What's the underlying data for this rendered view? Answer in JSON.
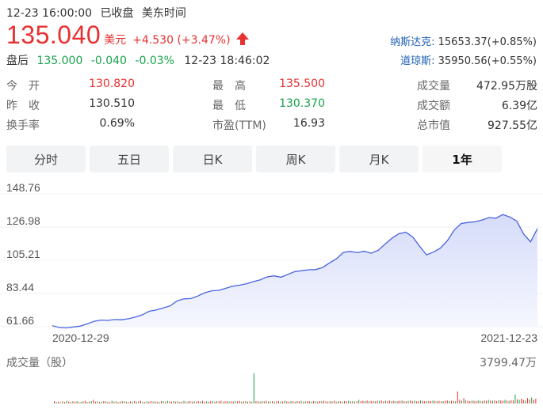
{
  "header": {
    "datetime": "12-23 16:00:00",
    "status": "已收盘",
    "timezone": "美东时间",
    "price": "135.040",
    "currency": "美元",
    "change": "+4.530 (+3.47%)",
    "after_label": "盘后",
    "after_price": "135.000",
    "after_change": "-0.040",
    "after_pct": "-0.03%",
    "after_time": "12-23 18:46:02"
  },
  "indices": [
    {
      "name": "纳斯达克:",
      "value": "15653.37(+0.85%)"
    },
    {
      "name": "道琼斯:",
      "value": "35950.56(+0.55%)"
    }
  ],
  "stats": [
    [
      {
        "label": "今　开",
        "value": "130.820",
        "color": "red"
      },
      {
        "label": "最　高",
        "value": "135.500",
        "color": "red"
      },
      {
        "label": "成交量",
        "value": "472.95万股",
        "color": ""
      }
    ],
    [
      {
        "label": "昨　收",
        "value": "130.510",
        "color": ""
      },
      {
        "label": "最　低",
        "value": "130.370",
        "color": "green"
      },
      {
        "label": "成交额",
        "value": "6.39亿",
        "color": ""
      }
    ],
    [
      {
        "label": "换手率",
        "value": "0.69%",
        "color": ""
      },
      {
        "label": "市盈(TTM)",
        "value": "16.93",
        "color": ""
      },
      {
        "label": "总市值",
        "value": "927.55亿",
        "color": ""
      }
    ]
  ],
  "tabs": [
    {
      "label": "分时",
      "active": false
    },
    {
      "label": "五日",
      "active": false
    },
    {
      "label": "日K",
      "active": false
    },
    {
      "label": "周K",
      "active": false
    },
    {
      "label": "月K",
      "active": false
    },
    {
      "label": "1年",
      "active": true
    }
  ],
  "colors": {
    "up": "#e93030",
    "down": "#17a34a",
    "line": "#4a63e0",
    "fill": "#dfe4fb",
    "link": "#1f5fb5"
  },
  "chart_data": {
    "type": "area",
    "y_ticks": [
      "148.76",
      "126.98",
      "105.21",
      "83.44",
      "61.66"
    ],
    "ylim": [
      61.66,
      148.76
    ],
    "x_labels": [
      "2020-12-29",
      "2021-12-23"
    ],
    "values": [
      62.3,
      61.2,
      60.9,
      61.5,
      62.0,
      63.5,
      65.2,
      66.0,
      65.8,
      66.4,
      66.2,
      66.9,
      68.0,
      69.5,
      71.8,
      72.6,
      74.0,
      75.3,
      78.6,
      79.9,
      80.1,
      81.8,
      83.9,
      85.2,
      85.5,
      86.8,
      88.2,
      88.9,
      89.8,
      91.2,
      92.4,
      94.3,
      95.0,
      94.1,
      96.0,
      97.8,
      98.4,
      99.0,
      99.1,
      100.5,
      103.5,
      106.2,
      110.4,
      111.0,
      110.2,
      111.1,
      109.8,
      111.7,
      115.8,
      119.6,
      122.6,
      123.6,
      120.5,
      114.4,
      108.8,
      110.6,
      113.2,
      118.0,
      125.0,
      129.3,
      130.0,
      130.4,
      131.6,
      133.2,
      132.8,
      135.2,
      133.6,
      131.0,
      122.5,
      117.3,
      126.0
    ],
    "volume_title": "成交量（股）",
    "volume_max": "3799.47万",
    "volume": [
      {
        "v": 0.08,
        "up": true
      },
      {
        "v": 0.05,
        "up": false
      },
      {
        "v": 0.06,
        "up": true
      },
      {
        "v": 0.04,
        "up": false
      },
      {
        "v": 0.07,
        "up": true
      },
      {
        "v": 0.05,
        "up": true
      },
      {
        "v": 0.09,
        "up": false
      },
      {
        "v": 0.06,
        "up": true
      },
      {
        "v": 0.05,
        "up": false
      },
      {
        "v": 0.07,
        "up": true
      },
      {
        "v": 0.06,
        "up": true
      },
      {
        "v": 0.08,
        "up": false
      },
      {
        "v": 0.05,
        "up": true
      },
      {
        "v": 0.06,
        "up": false
      },
      {
        "v": 0.07,
        "up": true
      },
      {
        "v": 0.09,
        "up": true
      },
      {
        "v": 0.05,
        "up": false
      },
      {
        "v": 0.06,
        "up": true
      },
      {
        "v": 0.08,
        "up": false
      },
      {
        "v": 0.12,
        "up": true
      },
      {
        "v": 0.06,
        "up": true
      },
      {
        "v": 0.07,
        "up": false
      },
      {
        "v": 0.05,
        "up": true
      },
      {
        "v": 0.06,
        "up": false
      },
      {
        "v": 0.08,
        "up": true
      },
      {
        "v": 0.07,
        "up": false
      },
      {
        "v": 0.06,
        "up": true
      },
      {
        "v": 0.05,
        "up": true
      },
      {
        "v": 0.09,
        "up": false
      },
      {
        "v": 0.06,
        "up": true
      },
      {
        "v": 0.07,
        "up": false
      },
      {
        "v": 0.05,
        "up": true
      },
      {
        "v": 0.06,
        "up": true
      },
      {
        "v": 0.08,
        "up": false
      },
      {
        "v": 0.07,
        "up": true
      },
      {
        "v": 0.06,
        "up": false
      },
      {
        "v": 0.05,
        "up": true
      },
      {
        "v": 0.07,
        "up": true
      },
      {
        "v": 0.06,
        "up": false
      },
      {
        "v": 0.08,
        "up": true
      },
      {
        "v": 0.06,
        "up": false
      },
      {
        "v": 0.07,
        "up": true
      },
      {
        "v": 0.09,
        "up": true
      },
      {
        "v": 0.06,
        "up": false
      },
      {
        "v": 0.05,
        "up": true
      },
      {
        "v": 0.07,
        "up": false
      },
      {
        "v": 0.06,
        "up": true
      },
      {
        "v": 0.08,
        "up": true
      },
      {
        "v": 0.06,
        "up": false
      },
      {
        "v": 0.07,
        "up": true
      },
      {
        "v": 0.06,
        "up": true
      },
      {
        "v": 0.05,
        "up": false
      },
      {
        "v": 0.08,
        "up": true
      },
      {
        "v": 0.07,
        "up": false
      },
      {
        "v": 0.06,
        "up": true
      },
      {
        "v": 0.09,
        "up": false
      },
      {
        "v": 0.07,
        "up": true
      },
      {
        "v": 0.06,
        "up": true
      },
      {
        "v": 0.08,
        "up": false
      },
      {
        "v": 0.06,
        "up": true
      },
      {
        "v": 0.07,
        "up": false
      },
      {
        "v": 0.05,
        "up": true
      },
      {
        "v": 0.06,
        "up": true
      },
      {
        "v": 0.09,
        "up": false
      },
      {
        "v": 0.06,
        "up": true
      },
      {
        "v": 0.07,
        "up": false
      },
      {
        "v": 0.08,
        "up": true
      },
      {
        "v": 0.06,
        "up": true
      },
      {
        "v": 0.07,
        "up": false
      },
      {
        "v": 0.06,
        "up": true
      },
      {
        "v": 0.08,
        "up": true
      },
      {
        "v": 0.07,
        "up": false
      },
      {
        "v": 0.09,
        "up": true
      },
      {
        "v": 0.06,
        "up": true
      },
      {
        "v": 0.07,
        "up": false
      },
      {
        "v": 0.06,
        "up": true
      },
      {
        "v": 0.08,
        "up": true
      },
      {
        "v": 0.07,
        "up": false
      },
      {
        "v": 0.06,
        "up": true
      },
      {
        "v": 0.08,
        "up": false
      },
      {
        "v": 0.07,
        "up": true
      },
      {
        "v": 0.09,
        "up": true
      },
      {
        "v": 0.06,
        "up": false
      },
      {
        "v": 0.07,
        "up": true
      },
      {
        "v": 0.08,
        "up": true
      },
      {
        "v": 0.06,
        "up": false
      },
      {
        "v": 0.07,
        "up": true
      },
      {
        "v": 0.06,
        "up": true
      },
      {
        "v": 0.08,
        "up": false
      },
      {
        "v": 0.07,
        "up": true
      },
      {
        "v": 0.09,
        "up": true
      },
      {
        "v": 0.06,
        "up": false
      },
      {
        "v": 0.07,
        "up": true
      },
      {
        "v": 0.08,
        "up": false
      },
      {
        "v": 0.06,
        "up": true
      },
      {
        "v": 0.07,
        "up": true
      },
      {
        "v": 0.06,
        "up": false
      },
      {
        "v": 1.0,
        "up": false
      },
      {
        "v": 0.08,
        "up": true
      },
      {
        "v": 0.07,
        "up": true
      },
      {
        "v": 0.06,
        "up": false
      },
      {
        "v": 0.08,
        "up": true
      },
      {
        "v": 0.07,
        "up": false
      },
      {
        "v": 0.09,
        "up": true
      },
      {
        "v": 0.06,
        "up": true
      },
      {
        "v": 0.07,
        "up": false
      },
      {
        "v": 0.08,
        "up": true
      },
      {
        "v": 0.06,
        "up": false
      },
      {
        "v": 0.07,
        "up": true
      },
      {
        "v": 0.08,
        "up": true
      },
      {
        "v": 0.06,
        "up": false
      },
      {
        "v": 0.07,
        "up": true
      },
      {
        "v": 0.09,
        "up": false
      },
      {
        "v": 0.07,
        "up": true
      },
      {
        "v": 0.06,
        "up": true
      },
      {
        "v": 0.08,
        "up": false
      },
      {
        "v": 0.07,
        "up": true
      },
      {
        "v": 0.06,
        "up": false
      },
      {
        "v": 0.08,
        "up": true
      },
      {
        "v": 0.07,
        "up": true
      },
      {
        "v": 0.09,
        "up": false
      },
      {
        "v": 0.06,
        "up": true
      },
      {
        "v": 0.07,
        "up": false
      },
      {
        "v": 0.08,
        "up": true
      },
      {
        "v": 0.07,
        "up": true
      },
      {
        "v": 0.06,
        "up": false
      },
      {
        "v": 0.08,
        "up": true
      },
      {
        "v": 0.07,
        "up": false
      },
      {
        "v": 0.06,
        "up": true
      },
      {
        "v": 0.08,
        "up": true
      },
      {
        "v": 0.07,
        "up": false
      },
      {
        "v": 0.09,
        "up": true
      },
      {
        "v": 0.07,
        "up": true
      },
      {
        "v": 0.06,
        "up": false
      },
      {
        "v": 0.08,
        "up": true
      },
      {
        "v": 0.07,
        "up": false
      },
      {
        "v": 0.09,
        "up": true
      },
      {
        "v": 0.06,
        "up": true
      },
      {
        "v": 0.08,
        "up": false
      },
      {
        "v": 0.07,
        "up": true
      },
      {
        "v": 0.06,
        "up": false
      },
      {
        "v": 0.08,
        "up": true
      },
      {
        "v": 0.07,
        "up": true
      },
      {
        "v": 0.09,
        "up": false
      },
      {
        "v": 0.07,
        "up": true
      },
      {
        "v": 0.08,
        "up": false
      },
      {
        "v": 0.06,
        "up": true
      },
      {
        "v": 0.07,
        "up": true
      },
      {
        "v": 0.12,
        "up": false
      },
      {
        "v": 0.08,
        "up": true
      },
      {
        "v": 0.09,
        "up": true
      },
      {
        "v": 0.08,
        "up": false
      },
      {
        "v": 0.1,
        "up": true
      },
      {
        "v": 0.07,
        "up": false
      },
      {
        "v": 0.09,
        "up": true
      },
      {
        "v": 0.08,
        "up": true
      },
      {
        "v": 0.07,
        "up": false
      },
      {
        "v": 0.09,
        "up": true
      },
      {
        "v": 0.08,
        "up": false
      },
      {
        "v": 0.1,
        "up": true
      },
      {
        "v": 0.07,
        "up": true
      },
      {
        "v": 0.09,
        "up": false
      },
      {
        "v": 0.08,
        "up": true
      },
      {
        "v": 0.1,
        "up": true
      },
      {
        "v": 0.08,
        "up": false
      },
      {
        "v": 0.09,
        "up": true
      },
      {
        "v": 0.07,
        "up": false
      },
      {
        "v": 0.08,
        "up": true
      },
      {
        "v": 0.09,
        "up": true
      },
      {
        "v": 0.1,
        "up": false
      },
      {
        "v": 0.08,
        "up": true
      },
      {
        "v": 0.07,
        "up": true
      },
      {
        "v": 0.09,
        "up": false
      },
      {
        "v": 0.1,
        "up": true
      },
      {
        "v": 0.08,
        "up": true
      },
      {
        "v": 0.09,
        "up": false
      },
      {
        "v": 0.07,
        "up": true
      },
      {
        "v": 0.08,
        "up": true
      },
      {
        "v": 0.1,
        "up": false
      },
      {
        "v": 0.09,
        "up": true
      },
      {
        "v": 0.08,
        "up": true
      },
      {
        "v": 0.07,
        "up": false
      },
      {
        "v": 0.09,
        "up": true
      },
      {
        "v": 0.08,
        "up": true
      },
      {
        "v": 0.1,
        "up": false
      },
      {
        "v": 0.09,
        "up": true
      },
      {
        "v": 0.08,
        "up": false
      },
      {
        "v": 0.09,
        "up": true
      },
      {
        "v": 0.07,
        "up": true
      },
      {
        "v": 0.08,
        "up": false
      },
      {
        "v": 0.09,
        "up": true
      },
      {
        "v": 0.1,
        "up": true
      },
      {
        "v": 0.08,
        "up": false
      },
      {
        "v": 0.09,
        "up": true
      },
      {
        "v": 0.08,
        "up": true
      },
      {
        "v": 0.07,
        "up": false
      },
      {
        "v": 0.4,
        "up": true
      },
      {
        "v": 0.12,
        "up": true
      },
      {
        "v": 0.09,
        "up": false
      },
      {
        "v": 0.18,
        "up": true
      },
      {
        "v": 0.1,
        "up": false
      },
      {
        "v": 0.09,
        "up": true
      },
      {
        "v": 0.08,
        "up": true
      },
      {
        "v": 0.1,
        "up": false
      },
      {
        "v": 0.09,
        "up": true
      },
      {
        "v": 0.08,
        "up": true
      },
      {
        "v": 0.1,
        "up": false
      },
      {
        "v": 0.09,
        "up": true
      },
      {
        "v": 0.08,
        "up": false
      },
      {
        "v": 0.1,
        "up": true
      },
      {
        "v": 0.09,
        "up": true
      },
      {
        "v": 0.12,
        "up": false
      },
      {
        "v": 0.1,
        "up": true
      },
      {
        "v": 0.09,
        "up": false
      },
      {
        "v": 0.1,
        "up": true
      },
      {
        "v": 0.08,
        "up": true
      },
      {
        "v": 0.11,
        "up": false
      },
      {
        "v": 0.1,
        "up": true
      },
      {
        "v": 0.09,
        "up": true
      },
      {
        "v": 0.12,
        "up": false
      },
      {
        "v": 0.1,
        "up": true
      },
      {
        "v": 0.09,
        "up": false
      },
      {
        "v": 0.11,
        "up": true
      },
      {
        "v": 0.1,
        "up": true
      },
      {
        "v": 0.3,
        "up": false
      },
      {
        "v": 0.14,
        "up": true
      },
      {
        "v": 0.12,
        "up": false
      },
      {
        "v": 0.16,
        "up": true
      },
      {
        "v": 0.12,
        "up": true
      },
      {
        "v": 0.1,
        "up": false
      },
      {
        "v": 0.18,
        "up": true
      },
      {
        "v": 0.14,
        "up": true
      },
      {
        "v": 0.2,
        "up": false
      },
      {
        "v": 0.12,
        "up": true
      },
      {
        "v": 0.16,
        "up": true
      }
    ]
  }
}
